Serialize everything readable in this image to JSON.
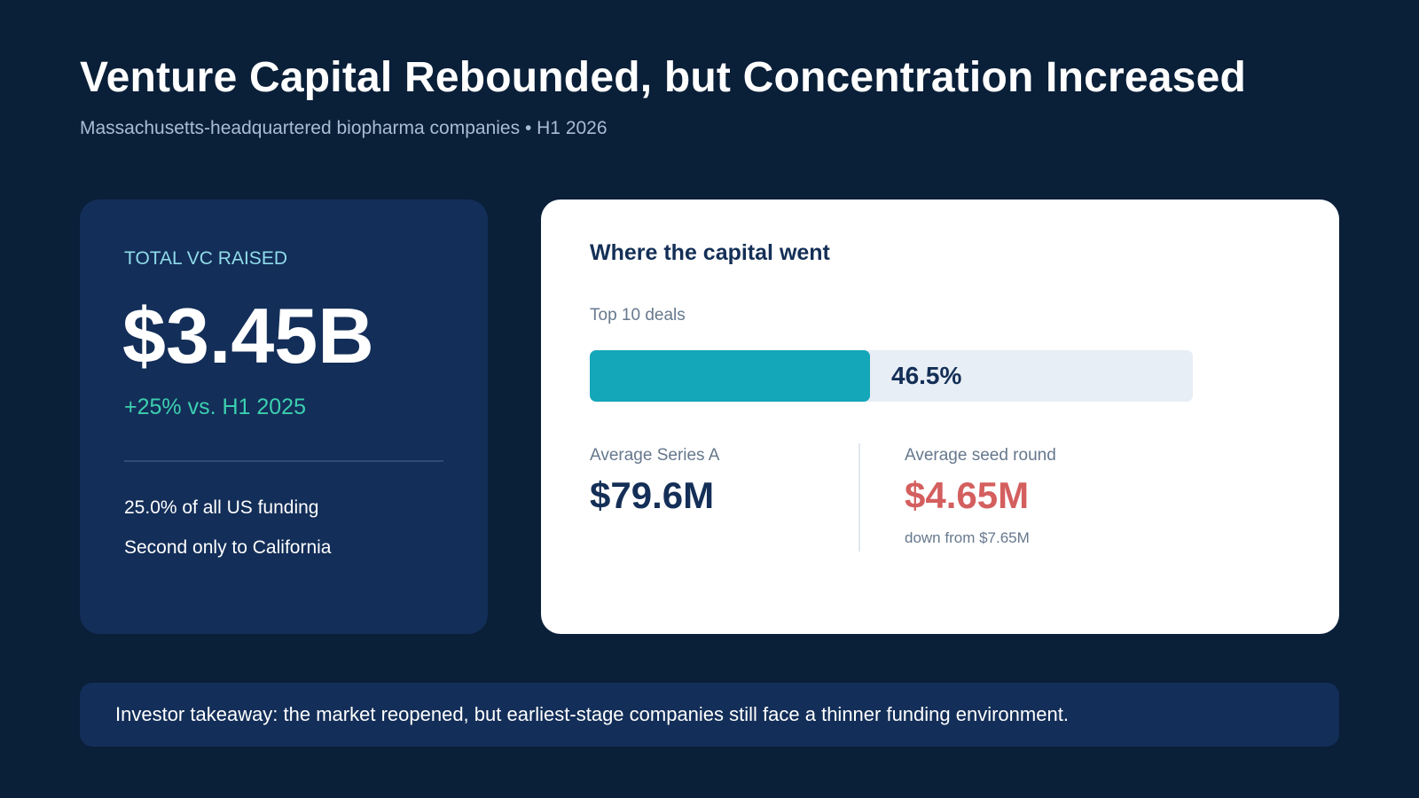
{
  "header": {
    "title": "Venture Capital Rebounded, but Concentration Increased",
    "subtitle": "Massachusetts-headquartered biopharma companies • H1 2026"
  },
  "summary_card": {
    "label": "TOTAL VC RAISED",
    "value": "$3.45B",
    "change": "+25% vs. H1 2025",
    "notes": [
      "25.0% of all US funding",
      "Second only to California"
    ]
  },
  "capital_card": {
    "heading": "Where the capital went",
    "bar": {
      "label": "Top 10 deals",
      "value_text": "46.5%",
      "percent": 46.5,
      "fill_color": "#14a6b9",
      "track_color": "#e8eef5"
    },
    "stats": [
      {
        "label": "Average Series A",
        "value": "$79.6M",
        "color": "#142f57"
      },
      {
        "label": "Average seed round",
        "value": "$4.65M",
        "sub": "down from $7.65M",
        "color": "#d45f5f"
      }
    ]
  },
  "takeaway": {
    "text": "Investor takeaway: the market reopened, but earliest-stage companies still face a thinner funding environment."
  },
  "colors": {
    "background": "#0a1f38",
    "card_dark": "#132e58",
    "accent_teal": "#3ccfb0",
    "label_cyan": "#8fdbea",
    "negative_red": "#d45f5f"
  }
}
